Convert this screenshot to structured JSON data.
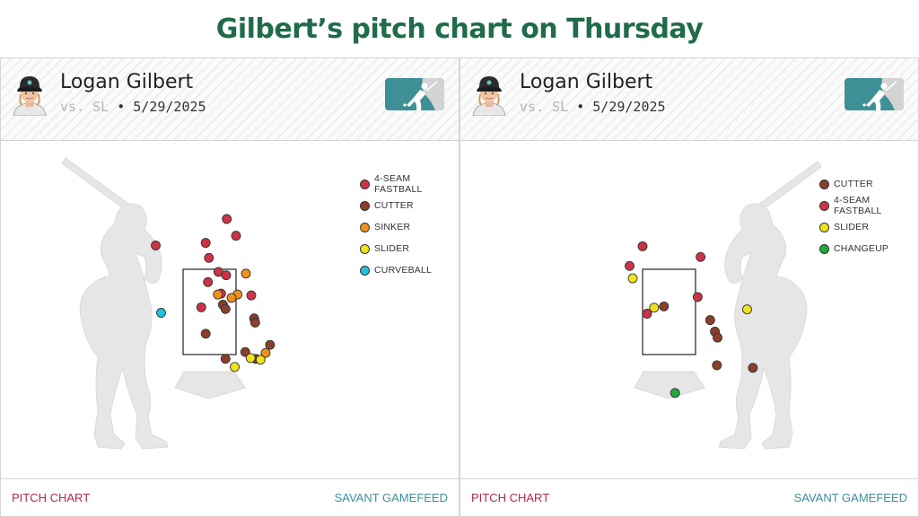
{
  "title": "Gilbert’s pitch chart on Thursday",
  "colors": {
    "title": "#1f6b4a",
    "4-SEAM FASTBALL": "#cc3347",
    "CUTTER": "#8a3f2a",
    "SINKER": "#f0901a",
    "SLIDER": "#f2e21c",
    "CURVEBALL": "#22c0dc",
    "CHANGEUP": "#1faa3c",
    "logo": "#3f8f96"
  },
  "chart_data": [
    {
      "type": "scatter",
      "player": "Logan Gilbert",
      "matchup": {
        "vs": "vs. SL",
        "separator": "•",
        "date": "5/29/2025"
      },
      "batter_side": "right",
      "strike_zone": {
        "x": [
          -0.83,
          0.83
        ],
        "z": [
          1.5,
          3.5
        ]
      },
      "legend": [
        "4-SEAM FASTBALL",
        "CUTTER",
        "SINKER",
        "SLIDER",
        "CURVEBALL"
      ],
      "pitches": [
        {
          "type": "4-SEAM FASTBALL",
          "x": 0.54,
          "z": 4.41
        },
        {
          "type": "4-SEAM FASTBALL",
          "x": 0.83,
          "z": 4.02
        },
        {
          "type": "4-SEAM FASTBALL",
          "x": -0.12,
          "z": 3.85
        },
        {
          "type": "4-SEAM FASTBALL",
          "x": -1.69,
          "z": 3.79
        },
        {
          "type": "4-SEAM FASTBALL",
          "x": -0.02,
          "z": 3.5
        },
        {
          "type": "4-SEAM FASTBALL",
          "x": 0.28,
          "z": 3.17
        },
        {
          "type": "4-SEAM FASTBALL",
          "x": 0.52,
          "z": 3.09
        },
        {
          "type": "4-SEAM FASTBALL",
          "x": -0.05,
          "z": 2.93
        },
        {
          "type": "4-SEAM FASTBALL",
          "x": 0.36,
          "z": 2.66
        },
        {
          "type": "4-SEAM FASTBALL",
          "x": 1.31,
          "z": 2.62
        },
        {
          "type": "4-SEAM FASTBALL",
          "x": -0.26,
          "z": 2.34
        },
        {
          "type": "CUTTER",
          "x": 0.42,
          "z": 2.4
        },
        {
          "type": "CUTTER",
          "x": 0.5,
          "z": 2.3
        },
        {
          "type": "CUTTER",
          "x": 1.4,
          "z": 2.08
        },
        {
          "type": "CUTTER",
          "x": 1.43,
          "z": 1.98
        },
        {
          "type": "CUTTER",
          "x": -0.12,
          "z": 1.72
        },
        {
          "type": "CUTTER",
          "x": 1.9,
          "z": 1.46
        },
        {
          "type": "CUTTER",
          "x": 1.12,
          "z": 1.29
        },
        {
          "type": "CUTTER",
          "x": 0.5,
          "z": 1.13
        },
        {
          "type": "CUTTER",
          "x": 1.45,
          "z": 1.13
        },
        {
          "type": "SINKER",
          "x": 1.14,
          "z": 3.13
        },
        {
          "type": "SINKER",
          "x": 0.88,
          "z": 2.64
        },
        {
          "type": "SINKER",
          "x": 0.69,
          "z": 2.56
        },
        {
          "type": "SINKER",
          "x": 0.26,
          "z": 2.64
        },
        {
          "type": "SINKER",
          "x": 1.76,
          "z": 1.27
        },
        {
          "type": "SLIDER",
          "x": 1.29,
          "z": 1.15
        },
        {
          "type": "SLIDER",
          "x": 1.6,
          "z": 1.11
        },
        {
          "type": "SLIDER",
          "x": 0.79,
          "z": 0.94
        },
        {
          "type": "CURVEBALL",
          "x": -1.52,
          "z": 2.21
        }
      ]
    },
    {
      "type": "scatter",
      "player": "Logan Gilbert",
      "matchup": {
        "vs": "vs. SL",
        "separator": "•",
        "date": "5/29/2025"
      },
      "batter_side": "left",
      "strike_zone": {
        "x": [
          -0.83,
          0.83
        ],
        "z": [
          1.5,
          3.5
        ]
      },
      "legend": [
        "CUTTER",
        "4-SEAM FASTBALL",
        "SLIDER",
        "CHANGEUP"
      ],
      "pitches": [
        {
          "type": "4-SEAM FASTBALL",
          "x": -0.83,
          "z": 3.77
        },
        {
          "type": "4-SEAM FASTBALL",
          "x": 0.99,
          "z": 3.52
        },
        {
          "type": "4-SEAM FASTBALL",
          "x": -1.24,
          "z": 3.31
        },
        {
          "type": "4-SEAM FASTBALL",
          "x": 0.9,
          "z": 2.58
        },
        {
          "type": "4-SEAM FASTBALL",
          "x": -0.69,
          "z": 2.19
        },
        {
          "type": "CUTTER",
          "x": -0.16,
          "z": 2.36
        },
        {
          "type": "CUTTER",
          "x": 1.29,
          "z": 2.04
        },
        {
          "type": "CUTTER",
          "x": 1.44,
          "z": 1.77
        },
        {
          "type": "CUTTER",
          "x": 1.52,
          "z": 1.63
        },
        {
          "type": "CUTTER",
          "x": 1.5,
          "z": 0.98
        },
        {
          "type": "CUTTER",
          "x": 2.63,
          "z": 0.92
        },
        {
          "type": "SLIDER",
          "x": -1.14,
          "z": 3.02
        },
        {
          "type": "SLIDER",
          "x": -0.47,
          "z": 2.33
        },
        {
          "type": "SLIDER",
          "x": 2.45,
          "z": 2.29
        },
        {
          "type": "CHANGEUP",
          "x": 0.19,
          "z": 0.33
        }
      ]
    }
  ],
  "panels": [
    {
      "footer_left": "PITCH CHART",
      "footer_right": "SAVANT GAMEFEED"
    },
    {
      "footer_left": "PITCH CHART",
      "footer_right": "SAVANT GAMEFEED"
    }
  ]
}
